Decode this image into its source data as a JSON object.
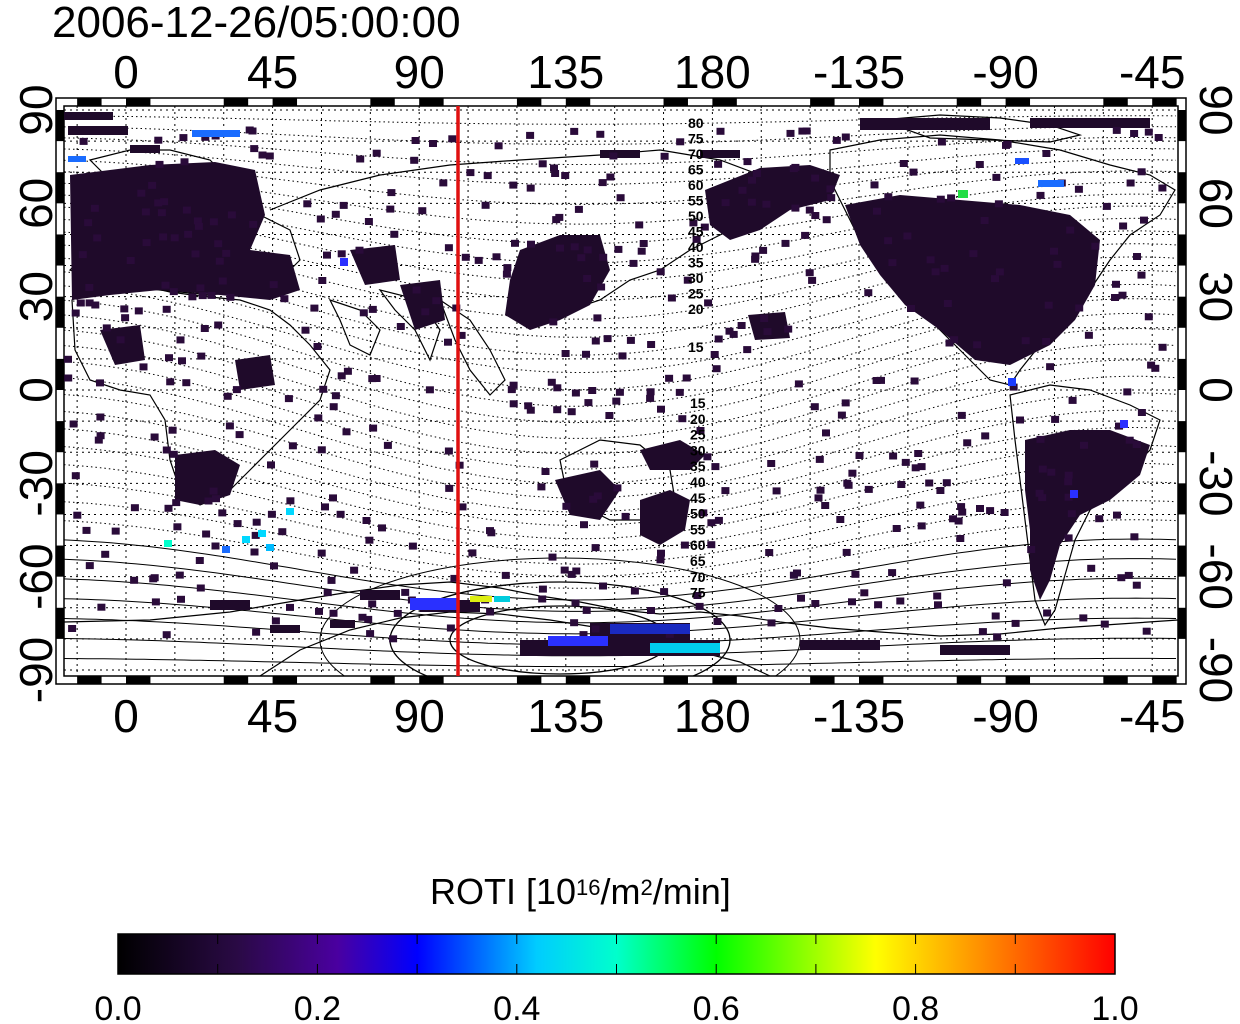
{
  "title": "2006-12-26/05:00:00",
  "top_axis_ticks": [
    "0",
    "45",
    "90",
    "135",
    "180",
    "-135",
    "-90",
    "-45"
  ],
  "bottom_axis_ticks": [
    "0",
    "45",
    "90",
    "135",
    "180",
    "-135",
    "-90",
    "-45"
  ],
  "left_axis_ticks": [
    "90",
    "60",
    "30",
    "0",
    "-30",
    "-60",
    "-90"
  ],
  "right_axis_ticks": [
    "90",
    "60",
    "30",
    "0",
    "-30",
    "-60",
    "-90"
  ],
  "contour_labels_north": [
    "80",
    "75",
    "70",
    "65",
    "60",
    "55",
    "50",
    "45",
    "40",
    "35",
    "30",
    "25",
    "20",
    "15"
  ],
  "contour_labels_south": [
    "15",
    "20",
    "25",
    "30",
    "35",
    "40",
    "45",
    "50",
    "55",
    "60",
    "65",
    "70",
    "75"
  ],
  "colorbar": {
    "title_main": "ROTI  [10",
    "title_exp1": "16",
    "title_mid": "/m",
    "title_exp2": "2",
    "title_end": "/min]",
    "ticks": [
      "0.0",
      "0.2",
      "0.4",
      "0.6",
      "0.8",
      "1.0"
    ],
    "colors": [
      "#000000",
      "#3b0070",
      "#0000ff",
      "#00ffff",
      "#00ff00",
      "#ffff00",
      "#ff8000",
      "#ff0000"
    ]
  },
  "marker_line": {
    "longitude": 105,
    "color": "#e01010"
  },
  "colors": {
    "data_cells": "#1f0a2a",
    "grid": "#000000"
  }
}
